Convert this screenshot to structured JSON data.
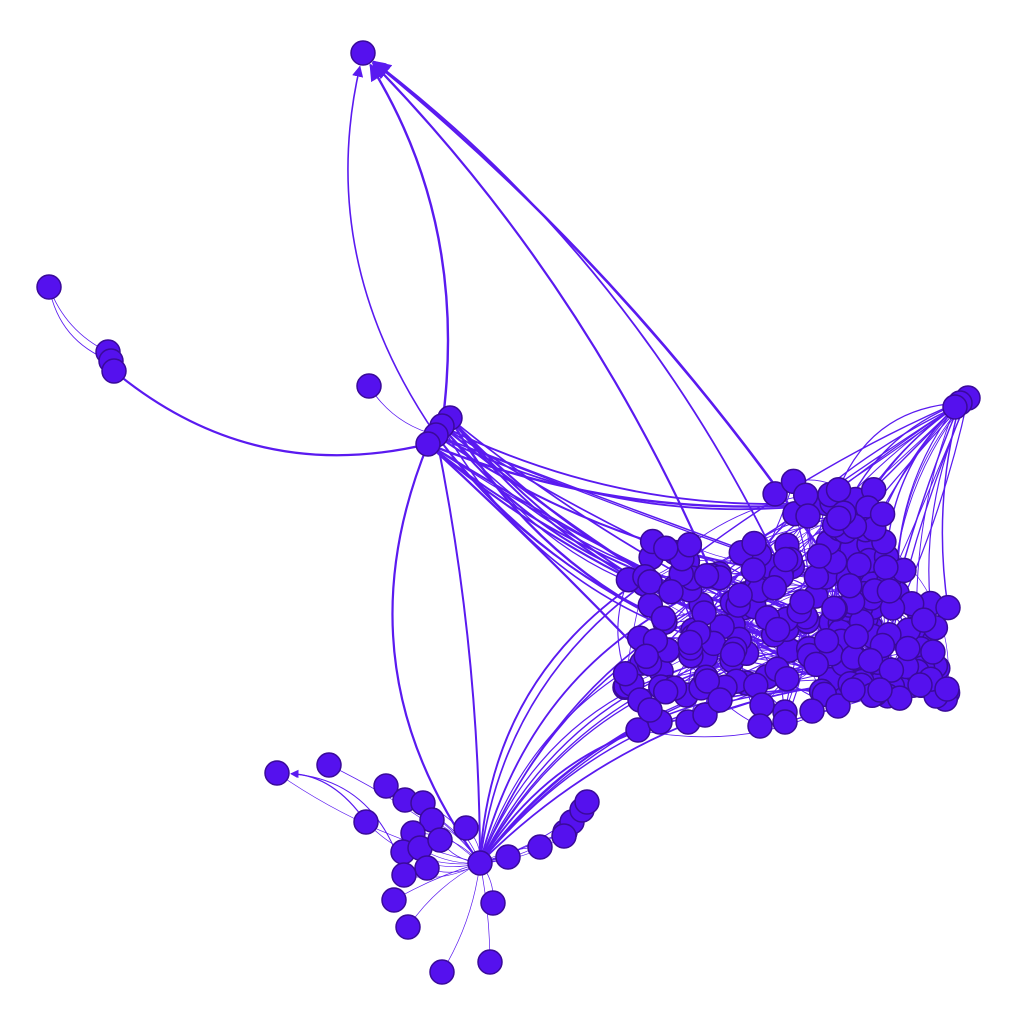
{
  "graph": {
    "directed": true,
    "colors": {
      "node_fill": "#5511ee",
      "node_stroke": "#3a0a9a",
      "edge": "#5a1af0"
    }
  }
}
